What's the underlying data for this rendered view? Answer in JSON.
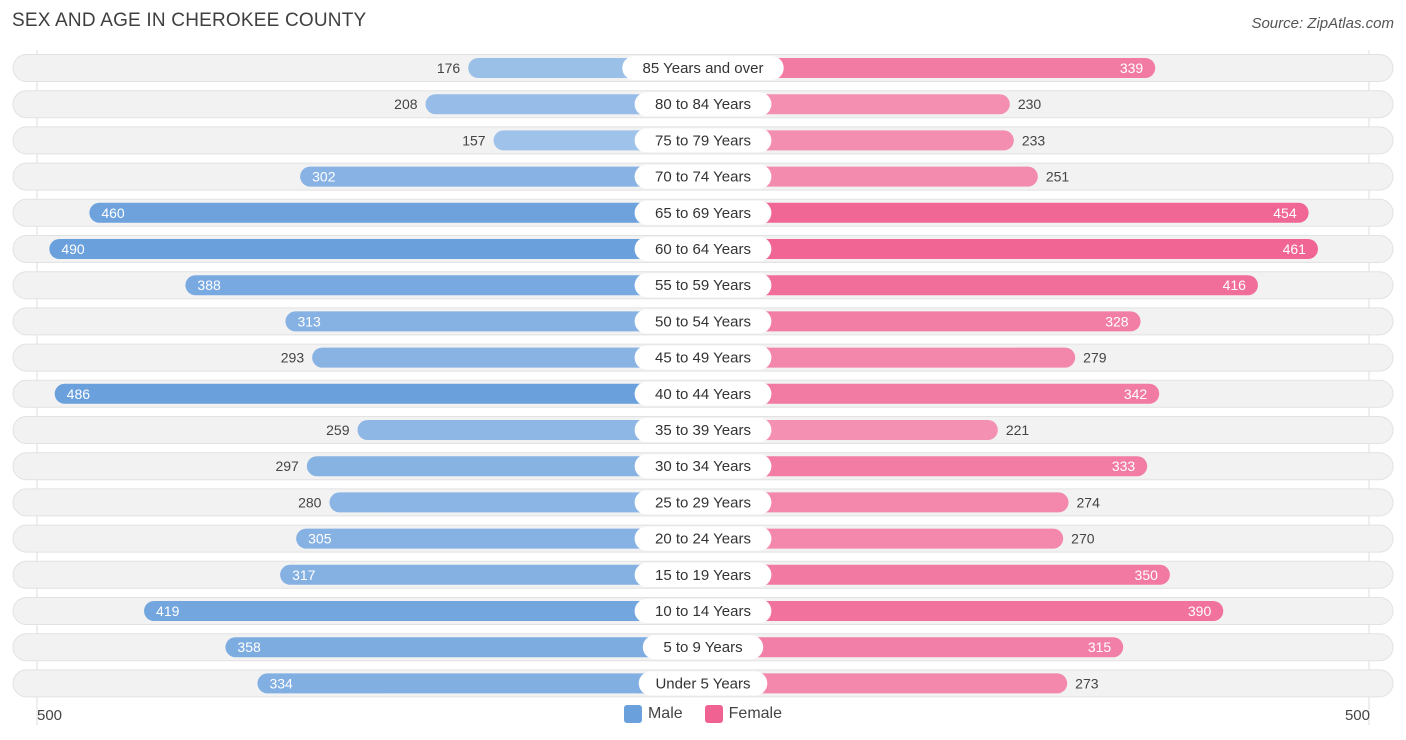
{
  "title": "SEX AND AGE IN CHEROKEE COUNTY",
  "source": "Source: ZipAtlas.com",
  "colors": {
    "male": "#6aa0dc",
    "female": "#f06292"
  },
  "legend": {
    "male": "Male",
    "female": "Female"
  },
  "axis": {
    "left_label": "500",
    "right_label": "500"
  },
  "chart_data": {
    "type": "bar",
    "orientation": "horizontal-butterfly",
    "xlim": [
      0,
      500
    ],
    "categories": [
      "85 Years and over",
      "80 to 84 Years",
      "75 to 79 Years",
      "70 to 74 Years",
      "65 to 69 Years",
      "60 to 64 Years",
      "55 to 59 Years",
      "50 to 54 Years",
      "45 to 49 Years",
      "40 to 44 Years",
      "35 to 39 Years",
      "30 to 34 Years",
      "25 to 29 Years",
      "20 to 24 Years",
      "15 to 19 Years",
      "10 to 14 Years",
      "5 to 9 Years",
      "Under 5 Years"
    ],
    "series": [
      {
        "name": "Male",
        "values": [
          176,
          208,
          157,
          302,
          460,
          490,
          388,
          313,
          293,
          486,
          259,
          297,
          280,
          305,
          317,
          419,
          358,
          334
        ]
      },
      {
        "name": "Female",
        "values": [
          339,
          230,
          233,
          251,
          454,
          461,
          416,
          328,
          279,
          342,
          221,
          333,
          274,
          270,
          350,
          390,
          315,
          273
        ]
      }
    ]
  }
}
